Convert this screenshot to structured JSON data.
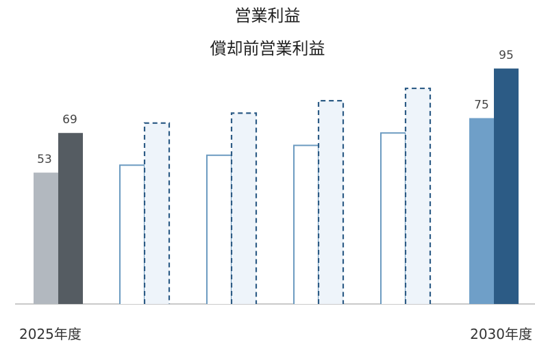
{
  "chart_data": {
    "type": "bar",
    "categories": [
      "2025年度",
      "",
      "",
      "",
      "",
      "2030年度"
    ],
    "series": [
      {
        "name": "営業利益",
        "values": [
          53,
          null,
          null,
          null,
          null,
          75
        ]
      },
      {
        "name": "償却前営業利益",
        "values": [
          69,
          null,
          null,
          null,
          null,
          95
        ]
      }
    ],
    "data_labels": [
      "53",
      "69",
      "75",
      "95"
    ],
    "x_end_labels": [
      "2025年度",
      "2030年度"
    ],
    "ylim": [
      0,
      100
    ],
    "grid": false,
    "legend_placement": "top-center",
    "colors": {
      "op_2025": "#b2b8bf",
      "ebitda_2025": "#555c62",
      "op_2030": "#6f9fc8",
      "ebitda_2030": "#2c5b85",
      "outline": "#6b9ac0",
      "dashed": "#2c5b85",
      "dashed_fill": "#eef4fa",
      "baseline": "#c9c9c9"
    }
  }
}
